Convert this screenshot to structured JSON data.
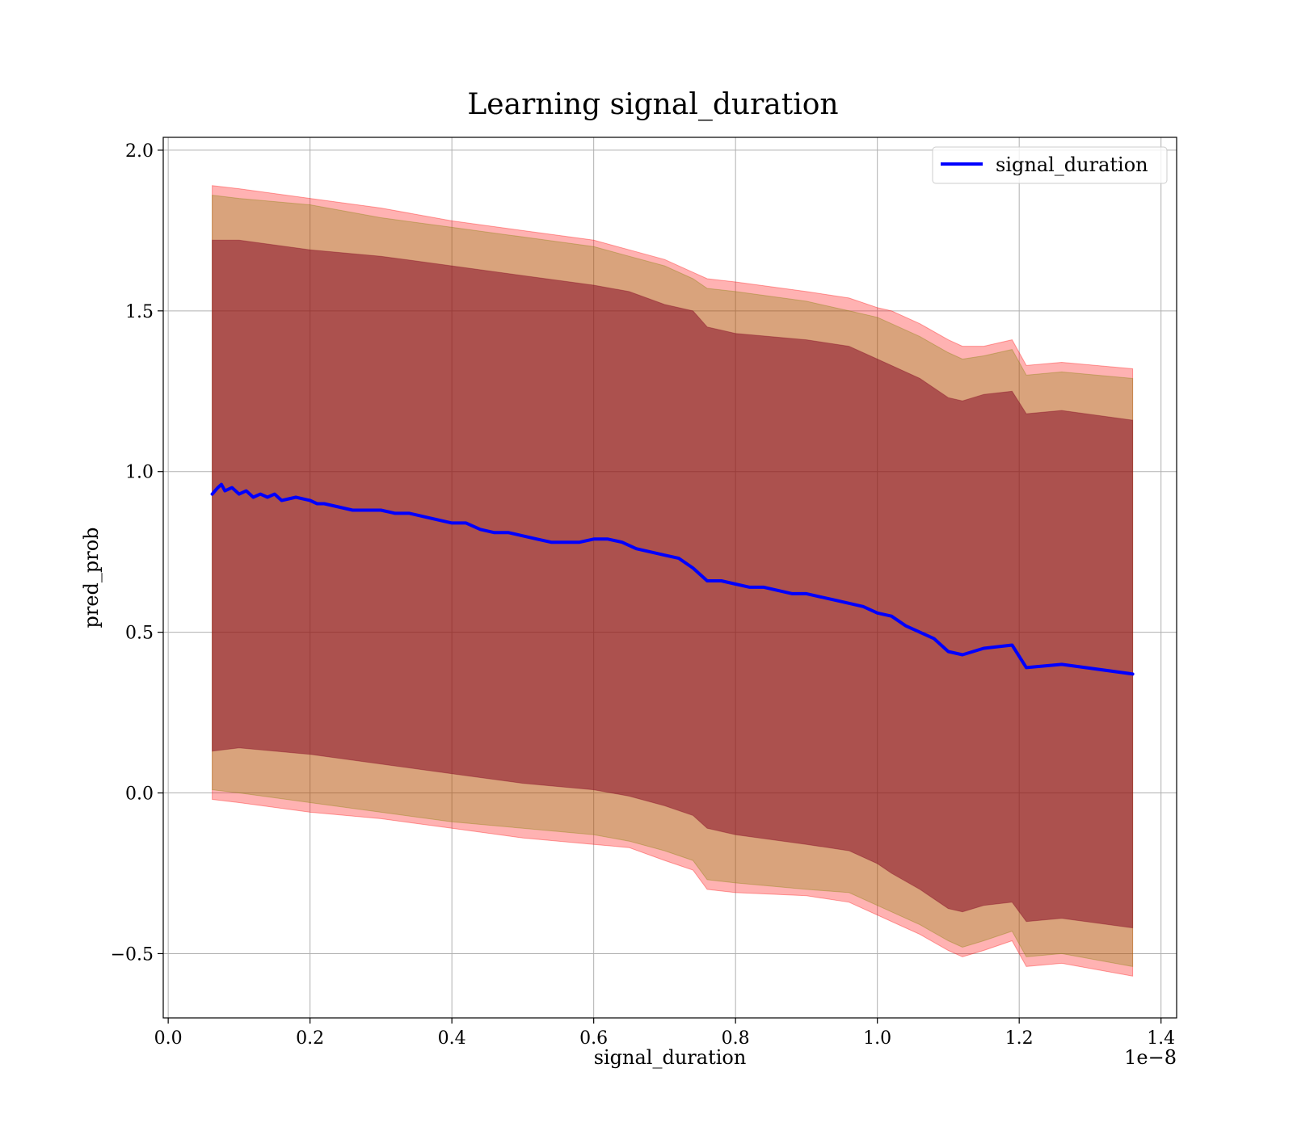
{
  "chart_data": {
    "type": "line",
    "title": "Learning signal_duration",
    "xlabel": "signal_duration",
    "ylabel": "pred_prob",
    "x_offset_label": "1e−8",
    "xlim": [
      -0.007,
      1.422
    ],
    "ylim": [
      -0.7,
      2.04
    ],
    "x_ticks": [
      0.0,
      0.2,
      0.4,
      0.6,
      0.8,
      1.0,
      1.2,
      1.4
    ],
    "x_tick_labels": [
      "0.0",
      "0.2",
      "0.4",
      "0.6",
      "0.8",
      "1.0",
      "1.2",
      "1.4"
    ],
    "y_ticks": [
      -0.5,
      0.0,
      0.5,
      1.0,
      1.5,
      2.0
    ],
    "y_tick_labels": [
      "−0.5",
      "0.0",
      "0.5",
      "1.0",
      "1.5",
      "2.0"
    ],
    "grid": true,
    "legend_position": "top-right",
    "colors": {
      "line": "#0000ff",
      "outer_band": "#ff0000",
      "middle_band": "#808000",
      "inner_band": "#800020",
      "grid": "#b0b0b0",
      "axes": "#000000"
    },
    "series": [
      {
        "name": "signal_duration",
        "x": [
          0.062,
          0.07,
          0.075,
          0.08,
          0.09,
          0.1,
          0.11,
          0.12,
          0.13,
          0.14,
          0.15,
          0.16,
          0.18,
          0.2,
          0.21,
          0.22,
          0.24,
          0.26,
          0.28,
          0.3,
          0.32,
          0.34,
          0.36,
          0.38,
          0.4,
          0.42,
          0.44,
          0.46,
          0.48,
          0.5,
          0.52,
          0.54,
          0.56,
          0.58,
          0.6,
          0.62,
          0.64,
          0.66,
          0.68,
          0.7,
          0.72,
          0.74,
          0.76,
          0.78,
          0.8,
          0.82,
          0.84,
          0.86,
          0.88,
          0.9,
          0.92,
          0.94,
          0.96,
          0.98,
          1.0,
          1.02,
          1.04,
          1.06,
          1.08,
          1.1,
          1.12,
          1.15,
          1.19,
          1.21,
          1.26,
          1.36
        ],
        "y": [
          0.93,
          0.95,
          0.96,
          0.94,
          0.95,
          0.93,
          0.94,
          0.92,
          0.93,
          0.92,
          0.93,
          0.91,
          0.92,
          0.91,
          0.9,
          0.9,
          0.89,
          0.88,
          0.88,
          0.88,
          0.87,
          0.87,
          0.86,
          0.85,
          0.84,
          0.84,
          0.82,
          0.81,
          0.81,
          0.8,
          0.79,
          0.78,
          0.78,
          0.78,
          0.79,
          0.79,
          0.78,
          0.76,
          0.75,
          0.74,
          0.73,
          0.7,
          0.66,
          0.66,
          0.65,
          0.64,
          0.64,
          0.63,
          0.62,
          0.62,
          0.61,
          0.6,
          0.59,
          0.58,
          0.56,
          0.55,
          0.52,
          0.5,
          0.48,
          0.44,
          0.43,
          0.45,
          0.46,
          0.39,
          0.4,
          0.37
        ]
      }
    ],
    "bands": [
      {
        "x": [
          0.062,
          0.1,
          0.2,
          0.3,
          0.4,
          0.5,
          0.6,
          0.65,
          0.7,
          0.74,
          0.76,
          0.8,
          0.9,
          0.96,
          1.0,
          1.02,
          1.06,
          1.1,
          1.12,
          1.15,
          1.19,
          1.21,
          1.26,
          1.36
        ],
        "upper": [
          1.89,
          1.88,
          1.85,
          1.82,
          1.78,
          1.75,
          1.72,
          1.69,
          1.66,
          1.62,
          1.6,
          1.59,
          1.56,
          1.54,
          1.51,
          1.5,
          1.46,
          1.41,
          1.39,
          1.39,
          1.41,
          1.33,
          1.34,
          1.32
        ],
        "lower": [
          -0.02,
          -0.03,
          -0.06,
          -0.08,
          -0.11,
          -0.14,
          -0.16,
          -0.17,
          -0.21,
          -0.24,
          -0.3,
          -0.31,
          -0.32,
          -0.34,
          -0.38,
          -0.4,
          -0.44,
          -0.49,
          -0.51,
          -0.49,
          -0.46,
          -0.54,
          -0.53,
          -0.57
        ]
      },
      {
        "x": [
          0.062,
          0.1,
          0.2,
          0.3,
          0.4,
          0.5,
          0.6,
          0.65,
          0.7,
          0.74,
          0.76,
          0.8,
          0.9,
          0.96,
          1.0,
          1.02,
          1.06,
          1.1,
          1.12,
          1.15,
          1.19,
          1.21,
          1.26,
          1.36
        ],
        "upper": [
          1.86,
          1.85,
          1.83,
          1.79,
          1.76,
          1.73,
          1.7,
          1.67,
          1.64,
          1.6,
          1.57,
          1.56,
          1.53,
          1.5,
          1.48,
          1.46,
          1.42,
          1.37,
          1.35,
          1.36,
          1.38,
          1.3,
          1.31,
          1.29
        ],
        "lower": [
          0.01,
          0.0,
          -0.03,
          -0.06,
          -0.09,
          -0.11,
          -0.13,
          -0.15,
          -0.18,
          -0.21,
          -0.27,
          -0.28,
          -0.3,
          -0.31,
          -0.35,
          -0.37,
          -0.41,
          -0.46,
          -0.48,
          -0.46,
          -0.43,
          -0.51,
          -0.5,
          -0.54
        ]
      },
      {
        "x": [
          0.062,
          0.1,
          0.2,
          0.3,
          0.4,
          0.5,
          0.6,
          0.65,
          0.7,
          0.74,
          0.76,
          0.8,
          0.9,
          0.96,
          1.0,
          1.02,
          1.06,
          1.1,
          1.12,
          1.15,
          1.19,
          1.21,
          1.26,
          1.36
        ],
        "upper": [
          1.72,
          1.72,
          1.69,
          1.67,
          1.64,
          1.61,
          1.58,
          1.56,
          1.52,
          1.5,
          1.45,
          1.43,
          1.41,
          1.39,
          1.35,
          1.33,
          1.29,
          1.23,
          1.22,
          1.24,
          1.25,
          1.18,
          1.19,
          1.16
        ],
        "lower": [
          0.13,
          0.14,
          0.12,
          0.09,
          0.06,
          0.03,
          0.01,
          -0.01,
          -0.04,
          -0.07,
          -0.11,
          -0.13,
          -0.16,
          -0.18,
          -0.22,
          -0.25,
          -0.3,
          -0.36,
          -0.37,
          -0.35,
          -0.34,
          -0.4,
          -0.39,
          -0.42
        ]
      }
    ]
  }
}
